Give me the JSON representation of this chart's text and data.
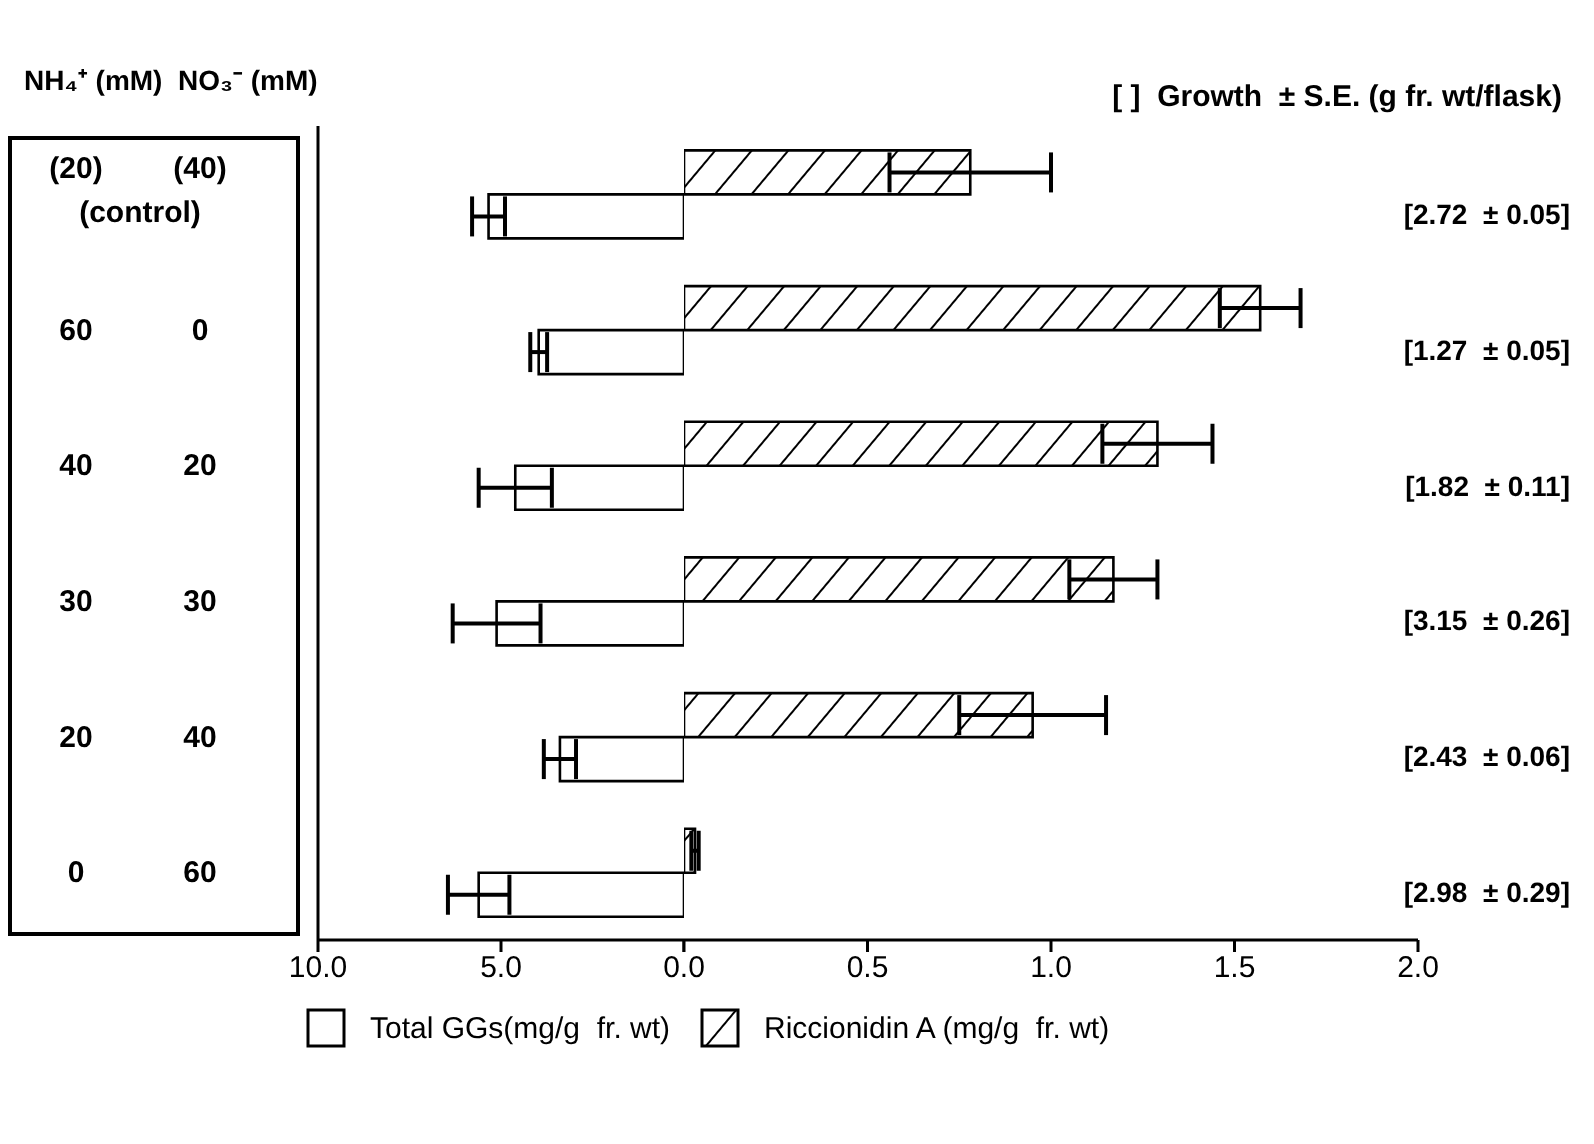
{
  "chart_data": [
    {
      "type": "bar",
      "orientation": "horizontal",
      "ylabel": "NH₄⁺ (mM)  NO₃⁻ (mM)",
      "categories": [
        "(20) (40) (control)",
        "60 0",
        "40 20",
        "30 30",
        "20 40",
        "0 60"
      ],
      "series": [
        {
          "name": "Total GGs(mg/g  fr. wt)",
          "color": "#ffffff",
          "values": [
            5.34,
            3.97,
            4.61,
            5.12,
            3.39,
            5.61
          ],
          "errors": [
            0.45,
            0.23,
            1.0,
            1.2,
            0.44,
            0.84
          ]
        }
      ],
      "xlim": [
        10,
        0
      ],
      "xticks": [
        {
          "value": 10,
          "label": "10.0"
        },
        {
          "value": 5,
          "label": "5.0"
        },
        {
          "value": 0,
          "label": null
        }
      ],
      "legend": "bottom"
    },
    {
      "type": "bar",
      "orientation": "horizontal",
      "title": "[ ]  Growth  ± S.E. (g fr. wt/flask)",
      "categories": [
        null,
        null,
        null,
        null,
        null,
        null
      ],
      "series": [
        {
          "name": "Riccionidin A (mg/g  fr. wt)",
          "color": "#000000",
          "values": [
            0.78,
            1.57,
            1.29,
            1.17,
            0.95,
            0.03
          ],
          "errors": [
            0.22,
            0.11,
            0.15,
            0.12,
            0.2,
            0.01
          ]
        }
      ],
      "xlim": [
        0,
        2
      ],
      "xticks": [
        {
          "value": 0,
          "label": "0.0"
        },
        {
          "value": 0.5,
          "label": "0.5"
        },
        {
          "value": 1,
          "label": "1.0"
        },
        {
          "value": 1.5,
          "label": "1.5"
        },
        {
          "value": 2,
          "label": "2.0"
        }
      ],
      "tick_labels": "x",
      "legend": "bottom",
      "annotations": [
        "[2.72  ± 0.05]",
        "[1.27  ± 0.05]",
        "[1.82  ± 0.11]",
        "[3.15  ± 0.26]",
        "[2.43  ± 0.06]",
        "[2.98  ± 0.29]"
      ]
    }
  ]
}
